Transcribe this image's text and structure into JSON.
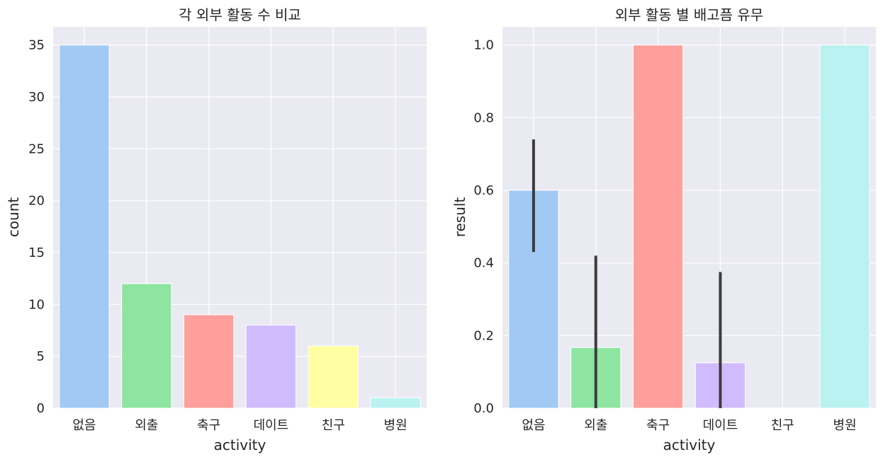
{
  "chart_data": [
    {
      "type": "bar",
      "title": "각 외부 활동 수 비교",
      "xlabel": "activity",
      "ylabel": "count",
      "categories": [
        "없음",
        "외출",
        "축구",
        "데이트",
        "친구",
        "병원"
      ],
      "values": [
        35,
        12,
        9,
        8,
        6,
        1
      ],
      "ylim": [
        0,
        36.75
      ],
      "yticks": [
        0,
        5,
        10,
        15,
        20,
        25,
        30,
        35
      ],
      "ytick_labels": [
        "0",
        "5",
        "10",
        "15",
        "20",
        "25",
        "30",
        "35"
      ],
      "grid": true,
      "colors": [
        "#a1c9f4",
        "#8de5a1",
        "#ff9f9b",
        "#d0bbff",
        "#fffea3",
        "#b9f2f0"
      ]
    },
    {
      "type": "bar",
      "title": "외부 활동 별 배고픔 유무",
      "xlabel": "activity",
      "ylabel": "result",
      "categories": [
        "없음",
        "외출",
        "축구",
        "데이트",
        "친구",
        "병원"
      ],
      "values": [
        0.6,
        0.167,
        1.0,
        0.125,
        0.0,
        1.0
      ],
      "error_bars": [
        [
          0.43,
          0.74
        ],
        [
          0.0,
          0.42
        ],
        null,
        [
          0.0,
          0.375
        ],
        null,
        null
      ],
      "ylim": [
        0,
        1.05
      ],
      "yticks": [
        0,
        0.2,
        0.4,
        0.6,
        0.8,
        1.0
      ],
      "ytick_labels": [
        "0.0",
        "0.2",
        "0.4",
        "0.6",
        "0.8",
        "1.0"
      ],
      "grid": true,
      "colors": [
        "#a1c9f4",
        "#8de5a1",
        "#ff9f9b",
        "#d0bbff",
        "#fffea3",
        "#b9f2f0"
      ]
    }
  ]
}
